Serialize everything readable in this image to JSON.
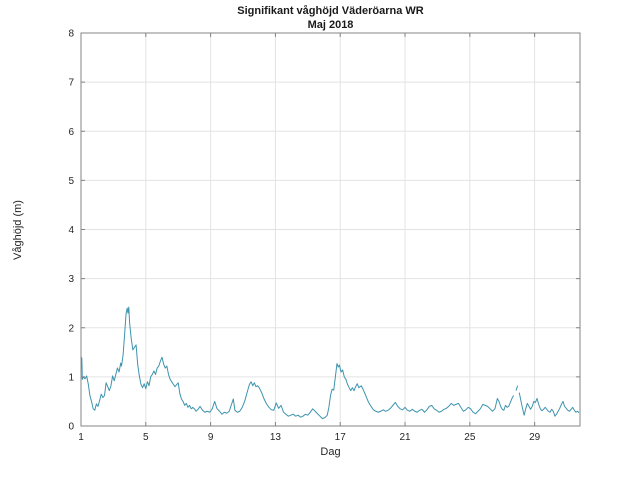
{
  "figure": {
    "title_line1": "Signifikant våghöjd Väderöarna WR",
    "title_line2": "Maj 2018",
    "xlabel": "Dag",
    "ylabel": "Våghöjd (m)"
  },
  "colors": {
    "line": "#3d94ad",
    "axis_box": "#848484",
    "grid": "#e3e3e3",
    "tick_text": "#262626",
    "background": "#ffffff"
  },
  "chart_data": {
    "type": "line",
    "title": "Signifikant våghöjd Väderöarna WR",
    "subtitle": "Maj 2018",
    "xlabel": "Dag",
    "ylabel": "Våghöjd (m)",
    "xlim": [
      1,
      31.8
    ],
    "ylim": [
      0,
      8
    ],
    "xticks": [
      1,
      5,
      9,
      13,
      17,
      21,
      25,
      29
    ],
    "yticks": [
      0,
      1,
      2,
      3,
      4,
      5,
      6,
      7,
      8
    ],
    "grid": true,
    "legend": "none",
    "series": [
      {
        "name": "Signifikant våghöjd (m)",
        "x": [
          1.0,
          1.05,
          1.08,
          1.15,
          1.25,
          1.35,
          1.45,
          1.55,
          1.65,
          1.75,
          1.85,
          1.95,
          2.05,
          2.15,
          2.25,
          2.35,
          2.45,
          2.55,
          2.65,
          2.75,
          2.85,
          2.95,
          3.05,
          3.15,
          3.25,
          3.35,
          3.45,
          3.5,
          3.6,
          3.7,
          3.78,
          3.85,
          3.9,
          3.95,
          4.0,
          4.1,
          4.2,
          4.3,
          4.4,
          4.5,
          4.6,
          4.7,
          4.8,
          4.9,
          5.0,
          5.1,
          5.2,
          5.3,
          5.4,
          5.5,
          5.6,
          5.7,
          5.8,
          5.9,
          6.0,
          6.1,
          6.2,
          6.3,
          6.4,
          6.5,
          6.6,
          6.7,
          6.8,
          6.9,
          7.0,
          7.1,
          7.2,
          7.3,
          7.4,
          7.5,
          7.6,
          7.7,
          7.8,
          7.9,
          8.0,
          8.1,
          8.2,
          8.35,
          8.5,
          8.65,
          8.8,
          8.95,
          9.1,
          9.25,
          9.4,
          9.55,
          9.7,
          9.85,
          10.0,
          10.15,
          10.3,
          10.4,
          10.5,
          10.65,
          10.8,
          10.95,
          11.1,
          11.25,
          11.4,
          11.5,
          11.6,
          11.7,
          11.8,
          11.9,
          12.0,
          12.15,
          12.3,
          12.45,
          12.6,
          12.75,
          12.9,
          13.05,
          13.2,
          13.35,
          13.5,
          13.65,
          13.8,
          13.95,
          14.1,
          14.25,
          14.4,
          14.55,
          14.7,
          14.85,
          15.0,
          15.15,
          15.3,
          15.45,
          15.6,
          15.75,
          15.9,
          16.05,
          16.2,
          16.3,
          16.4,
          16.5,
          16.6,
          16.7,
          16.8,
          16.88,
          16.95,
          17.05,
          17.15,
          17.25,
          17.35,
          17.45,
          17.55,
          17.65,
          17.75,
          17.85,
          17.95,
          18.05,
          18.15,
          18.3,
          18.45,
          18.6,
          18.75,
          18.9,
          19.05,
          19.2,
          19.35,
          19.5,
          19.65,
          19.8,
          19.95,
          20.1,
          20.25,
          20.4,
          20.55,
          20.7,
          20.85,
          21.0,
          21.15,
          21.3,
          21.45,
          21.6,
          21.75,
          21.9,
          22.05,
          22.2,
          22.35,
          22.5,
          22.65,
          22.8,
          22.95,
          23.1,
          23.25,
          23.4,
          23.55,
          23.7,
          23.85,
          24.0,
          24.15,
          24.3,
          24.45,
          24.6,
          24.75,
          24.9,
          25.05,
          25.2,
          25.35,
          25.5,
          25.65,
          25.8,
          25.95,
          26.1,
          26.25,
          26.4,
          26.55,
          26.7,
          26.8,
          26.9,
          27.0,
          27.1,
          27.2,
          27.3,
          27.4,
          27.5,
          27.6,
          27.7,
          27.75,
          27.85,
          27.95,
          28.0,
          28.05,
          28.15,
          28.25,
          28.35,
          28.45,
          28.55,
          28.65,
          28.75,
          28.85,
          28.95,
          29.05,
          29.15,
          29.25,
          29.35,
          29.45,
          29.55,
          29.65,
          29.75,
          29.85,
          29.95,
          30.05,
          30.15,
          30.25,
          30.35,
          30.45,
          30.55,
          30.65,
          30.75,
          30.85,
          30.95,
          31.05,
          31.15,
          31.25,
          31.35,
          31.45,
          31.55,
          31.65,
          31.73
        ],
        "y": [
          1.41,
          1.38,
          0.95,
          1.0,
          0.96,
          1.02,
          0.85,
          0.62,
          0.5,
          0.35,
          0.32,
          0.45,
          0.4,
          0.52,
          0.65,
          0.58,
          0.62,
          0.88,
          0.8,
          0.72,
          0.82,
          1.02,
          0.92,
          1.05,
          1.18,
          1.1,
          1.28,
          1.22,
          1.45,
          1.9,
          2.28,
          2.4,
          2.3,
          2.42,
          2.1,
          1.78,
          1.55,
          1.6,
          1.65,
          1.25,
          1.02,
          0.85,
          0.78,
          0.86,
          0.76,
          0.9,
          0.82,
          1.0,
          1.05,
          1.12,
          1.05,
          1.18,
          1.22,
          1.32,
          1.4,
          1.26,
          1.18,
          1.22,
          1.05,
          0.95,
          0.9,
          0.85,
          0.8,
          0.84,
          0.88,
          0.66,
          0.55,
          0.5,
          0.42,
          0.46,
          0.38,
          0.42,
          0.35,
          0.38,
          0.35,
          0.3,
          0.33,
          0.4,
          0.32,
          0.28,
          0.3,
          0.28,
          0.35,
          0.5,
          0.35,
          0.3,
          0.24,
          0.28,
          0.26,
          0.3,
          0.45,
          0.55,
          0.32,
          0.28,
          0.3,
          0.38,
          0.5,
          0.68,
          0.85,
          0.9,
          0.82,
          0.88,
          0.8,
          0.82,
          0.78,
          0.68,
          0.55,
          0.45,
          0.38,
          0.33,
          0.32,
          0.47,
          0.36,
          0.42,
          0.28,
          0.24,
          0.2,
          0.22,
          0.24,
          0.2,
          0.22,
          0.18,
          0.2,
          0.24,
          0.22,
          0.28,
          0.35,
          0.3,
          0.25,
          0.2,
          0.15,
          0.17,
          0.22,
          0.38,
          0.62,
          0.75,
          0.73,
          1.0,
          1.27,
          1.2,
          1.24,
          1.1,
          1.14,
          1.0,
          0.95,
          0.85,
          0.78,
          0.72,
          0.78,
          0.72,
          0.8,
          0.86,
          0.78,
          0.82,
          0.72,
          0.6,
          0.48,
          0.4,
          0.33,
          0.3,
          0.28,
          0.3,
          0.33,
          0.3,
          0.32,
          0.36,
          0.42,
          0.48,
          0.4,
          0.35,
          0.33,
          0.38,
          0.32,
          0.3,
          0.34,
          0.3,
          0.28,
          0.32,
          0.34,
          0.28,
          0.33,
          0.4,
          0.42,
          0.35,
          0.32,
          0.28,
          0.3,
          0.34,
          0.36,
          0.4,
          0.46,
          0.42,
          0.44,
          0.46,
          0.38,
          0.3,
          0.33,
          0.38,
          0.35,
          0.28,
          0.25,
          0.3,
          0.35,
          0.44,
          0.42,
          0.4,
          0.35,
          0.3,
          0.35,
          0.56,
          0.5,
          0.4,
          0.34,
          0.32,
          0.42,
          0.38,
          0.4,
          0.48,
          0.56,
          0.62,
          null,
          0.72,
          0.82,
          null,
          0.68,
          0.52,
          0.36,
          0.22,
          0.35,
          0.46,
          0.4,
          0.34,
          0.4,
          0.5,
          0.48,
          0.56,
          0.44,
          0.35,
          0.31,
          0.34,
          0.38,
          0.34,
          0.3,
          0.28,
          0.34,
          0.3,
          0.2,
          0.24,
          0.3,
          0.36,
          0.44,
          0.5,
          0.4,
          0.36,
          0.32,
          0.3,
          0.34,
          0.38,
          0.32,
          0.28,
          0.3,
          0.27
        ]
      }
    ]
  }
}
